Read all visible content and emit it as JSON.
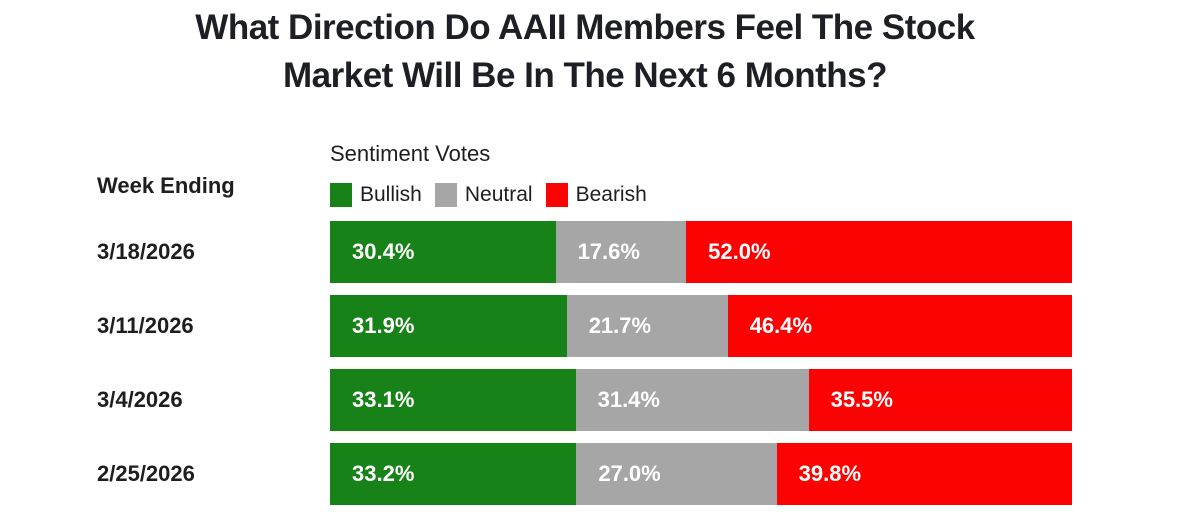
{
  "header": {
    "title_line1": "What Direction Do AAII Members Feel The Stock",
    "title_line2": "Market Will Be In The Next 6 Months?"
  },
  "chart_data": {
    "type": "bar",
    "orientation": "horizontal",
    "stacked": true,
    "title": "What Direction Do AAII Members Feel The Stock Market Will Be In The Next 6 Months?",
    "legend_title": "Sentiment Votes",
    "row_header": "Week Ending",
    "categories": [
      "3/18/2026",
      "3/11/2026",
      "3/4/2026",
      "2/25/2026"
    ],
    "series": [
      {
        "name": "Bullish",
        "color": "#178217",
        "values": [
          30.4,
          31.9,
          33.1,
          33.2
        ]
      },
      {
        "name": "Neutral",
        "color": "#a6a6a6",
        "values": [
          17.6,
          21.7,
          31.4,
          27.0
        ]
      },
      {
        "name": "Bearish",
        "color": "#fb0303",
        "values": [
          52.0,
          46.4,
          35.5,
          39.8
        ]
      }
    ],
    "value_suffix": "%",
    "value_decimals": 1,
    "xlim": [
      0,
      100
    ],
    "legend_position": "top",
    "grid": false,
    "bar_label_color": "#ffffff"
  },
  "colors": {
    "background": "#ffffff",
    "text": "#1e1e1e"
  }
}
